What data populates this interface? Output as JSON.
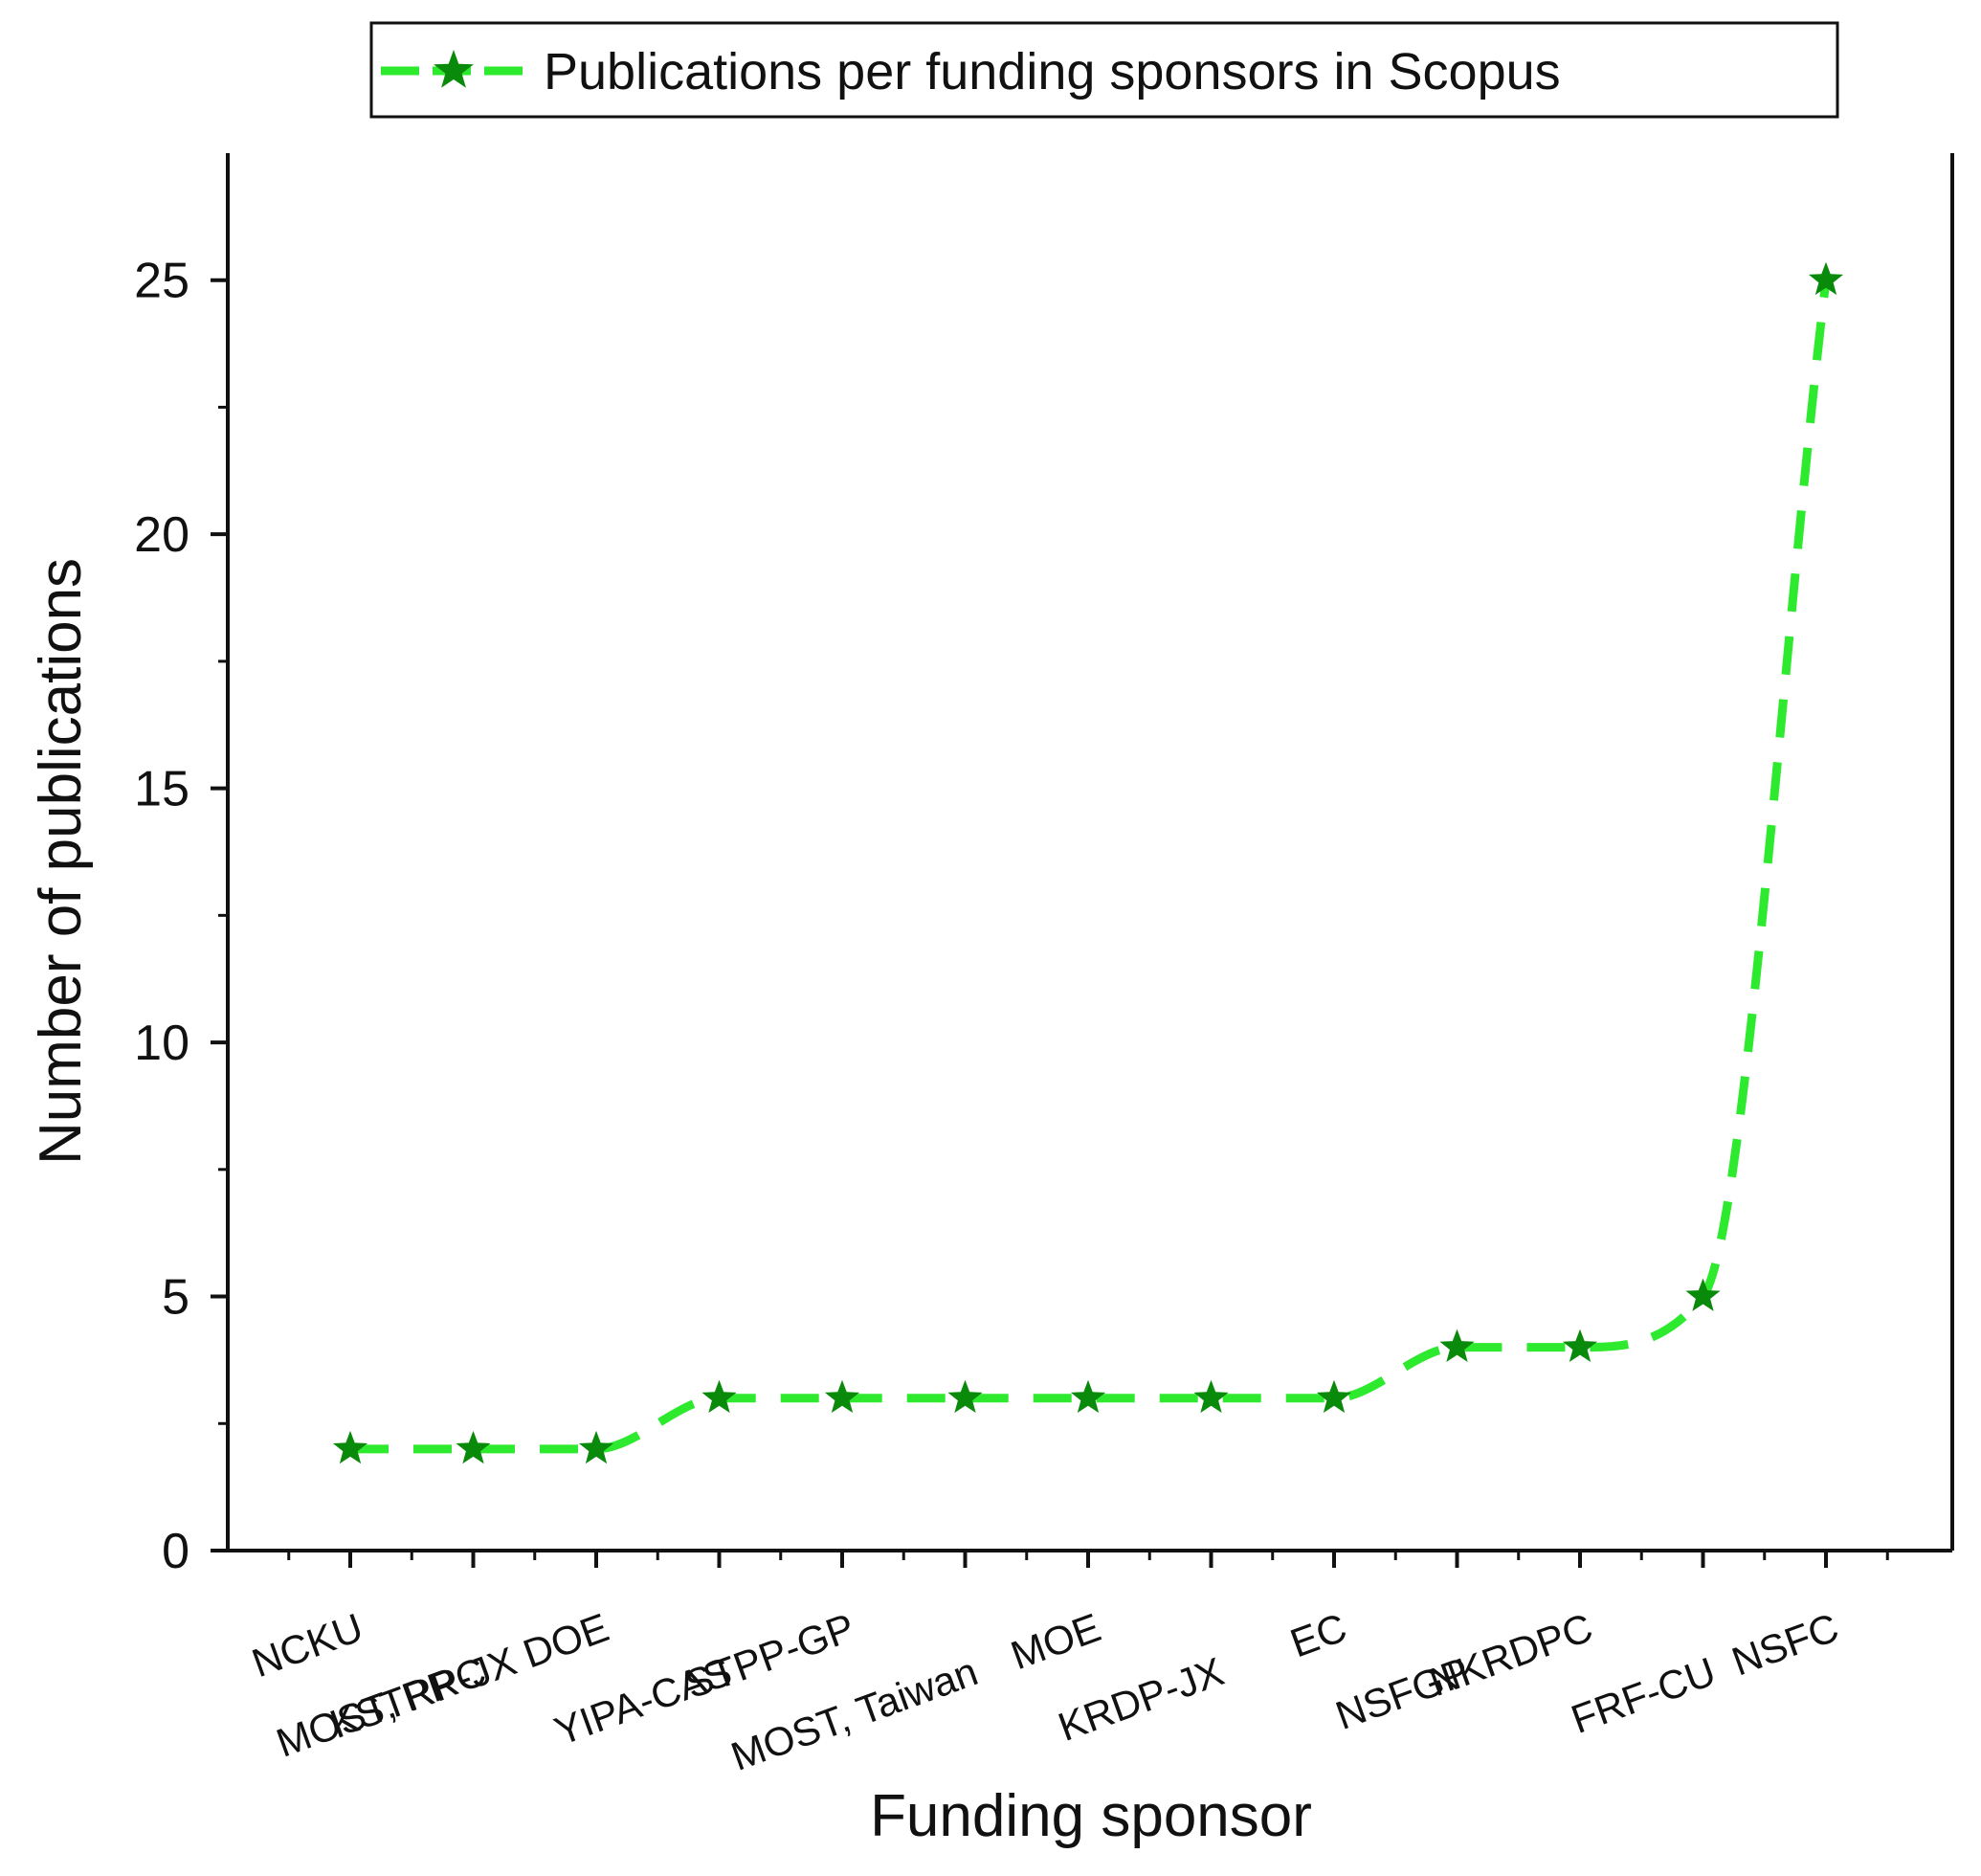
{
  "chart_data": {
    "type": "line",
    "title": "",
    "xlabel": "Funding sponsor",
    "ylabel": "Number of publications",
    "ylim": [
      0,
      27.5
    ],
    "yticks": [
      0,
      5,
      10,
      15,
      20,
      25
    ],
    "grid": false,
    "legend_position": "top",
    "categories": [
      "NCKU",
      "MOST, PRC",
      "KSTRP-JX DOE",
      "YIPA-CAS",
      "STPP-GP",
      "MOST, Taiwan",
      "MOE",
      "KRDP-JX",
      "EC",
      "NSFGP",
      "NKRDPC",
      "FRF-CU",
      "NSFC"
    ],
    "series": [
      {
        "name": "Publications per funding sponsors in Scopus",
        "values": [
          2,
          2,
          2,
          3,
          3,
          3,
          3,
          3,
          3,
          4,
          4,
          5,
          25
        ],
        "line_color": "#2eea2e",
        "marker_color": "#0a8a0a",
        "marker": "star",
        "line_style": "dashed"
      }
    ]
  }
}
